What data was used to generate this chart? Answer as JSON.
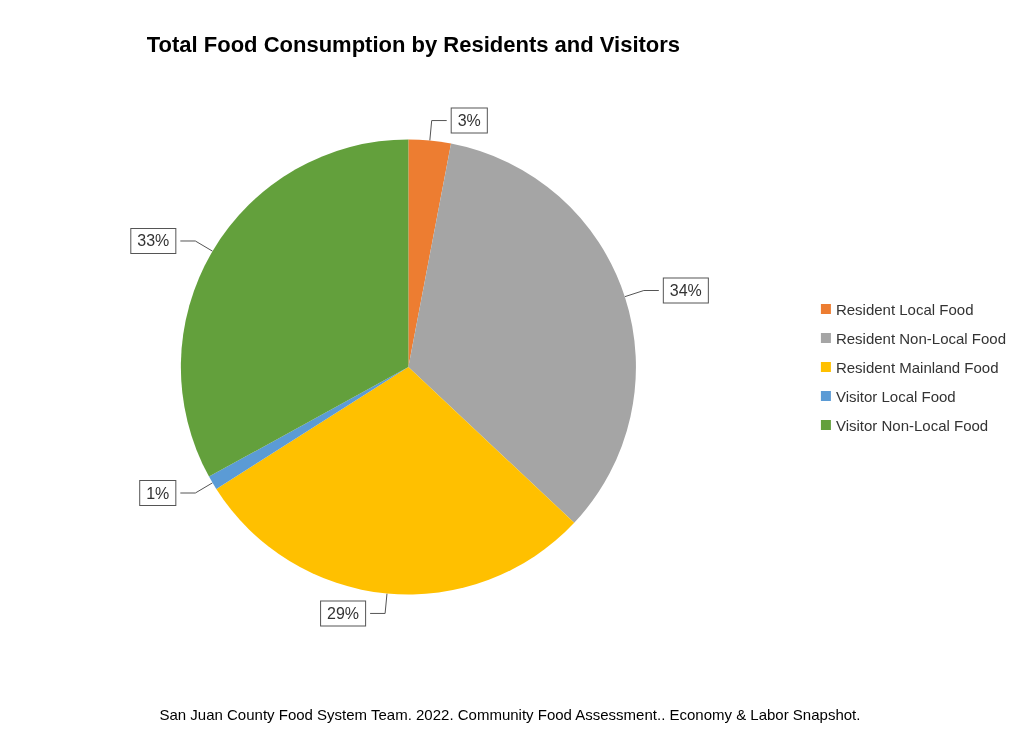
{
  "chart_data": {
    "type": "pie",
    "title": "Total Food Consumption by Residents and Visitors",
    "categories": [
      "Resident Local Food",
      "Resident Non-Local Food",
      "Resident Mainland Food",
      "Visitor Local Food",
      "Visitor Non-Local Food"
    ],
    "values": [
      3,
      34,
      29,
      1,
      33
    ],
    "value_labels": [
      "3%",
      "34%",
      "29%",
      "1%",
      "33%"
    ],
    "colors": [
      "#ed7d31",
      "#a5a5a5",
      "#ffc000",
      "#5b9bd5",
      "#63a03c"
    ],
    "legend": "right",
    "annotations": [
      "San Juan County Food System Team. 2022. Community Food Assessment.. Economy & Labor Snapshot."
    ]
  }
}
